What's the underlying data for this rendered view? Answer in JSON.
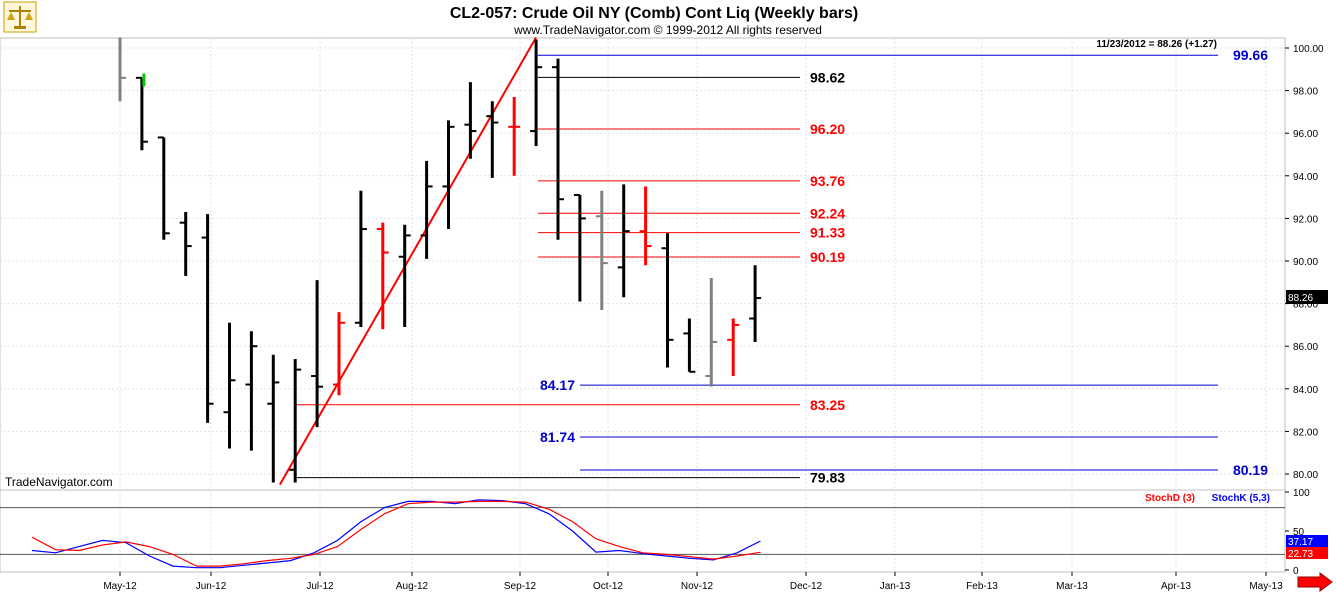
{
  "title": "CL2-057:  Crude Oil NY (Comb) Cont Liq  (Weekly bars)",
  "subtitle": "www.TradeNavigator.com © 1999-2012 All rights reserved",
  "watermark": "TradeNavigator.com",
  "last_quote": "11/23/2012 = 88.26 (+1.27)",
  "price_tag": "88.26",
  "stoch_tags": {
    "k": "37.17",
    "d": "22.73"
  },
  "colors": {
    "bar_up": "#000000",
    "bar_gray": "#808080",
    "bar_red": "#ff0000",
    "bar_green": "#00cc00",
    "level_red": "#ff0000",
    "level_blue": "#0000cc",
    "level_black": "#000000",
    "stoch_k": "#0000ff",
    "stoch_d": "#ff0000"
  },
  "icons": {
    "logo": "gold-scale-icon",
    "scroll": "red-right-arrow-icon"
  },
  "chart_data": [
    {
      "type": "ohlc",
      "title": "CL2-057:  Crude Oil NY (Comb) Cont Liq  (Weekly bars)",
      "x_tick_labels": [
        "May-12",
        "Jun-12",
        "Jul-12",
        "Aug-12",
        "Sep-12",
        "Oct-12",
        "Nov-12",
        "Dec-12",
        "Jan-13",
        "Feb-13",
        "Mar-13",
        "Apr-13",
        "May-13"
      ],
      "y_ticks": [
        "100.00",
        "98.00",
        "96.00",
        "94.00",
        "92.00",
        "90.00",
        "88.00",
        "86.00",
        "84.00",
        "82.00",
        "80.00"
      ],
      "ylim": [
        79.5,
        100.6
      ],
      "bars": [
        {
          "week": 0,
          "open": null,
          "high": 100.5,
          "low": 97.5,
          "close": 98.6,
          "color": "gray"
        },
        {
          "week": 1,
          "open": 98.6,
          "high": 98.6,
          "low": 95.2,
          "close": 95.6,
          "color": "black"
        },
        {
          "week": 2,
          "open": 95.8,
          "high": 95.8,
          "low": 91.0,
          "close": 91.3,
          "color": "black"
        },
        {
          "week": 3,
          "open": 91.8,
          "high": 92.3,
          "low": 89.3,
          "close": 90.7,
          "color": "black"
        },
        {
          "week": 4,
          "open": 91.1,
          "high": 92.2,
          "low": 82.4,
          "close": 83.3,
          "color": "black"
        },
        {
          "week": 5,
          "open": 82.9,
          "high": 87.1,
          "low": 81.2,
          "close": 84.4,
          "color": "black"
        },
        {
          "week": 6,
          "open": 84.2,
          "high": 86.7,
          "low": 81.1,
          "close": 86.0,
          "color": "black"
        },
        {
          "week": 7,
          "open": 83.3,
          "high": 85.6,
          "low": 79.6,
          "close": 84.3,
          "color": "black"
        },
        {
          "week": 8,
          "open": 80.2,
          "high": 85.4,
          "low": 79.6,
          "close": 84.9,
          "color": "black"
        },
        {
          "week": 9,
          "open": 84.6,
          "high": 89.1,
          "low": 82.2,
          "close": 84.1,
          "color": "black"
        },
        {
          "week": 10,
          "open": 84.2,
          "high": 87.6,
          "low": 83.7,
          "close": 87.1,
          "color": "red"
        },
        {
          "week": 11,
          "open": 87.1,
          "high": 93.3,
          "low": 86.9,
          "close": 91.5,
          "color": "black"
        },
        {
          "week": 12,
          "open": 91.5,
          "high": 91.8,
          "low": 86.8,
          "close": 90.4,
          "color": "red"
        },
        {
          "week": 13,
          "open": 90.2,
          "high": 91.7,
          "low": 86.9,
          "close": 91.2,
          "color": "black"
        },
        {
          "week": 14,
          "open": 91.2,
          "high": 94.7,
          "low": 90.1,
          "close": 93.5,
          "color": "black"
        },
        {
          "week": 15,
          "open": 93.5,
          "high": 96.6,
          "low": 91.5,
          "close": 96.3,
          "color": "black"
        },
        {
          "week": 16,
          "open": 96.4,
          "high": 98.4,
          "low": 94.8,
          "close": 96.1,
          "color": "black"
        },
        {
          "week": 17,
          "open": 96.8,
          "high": 97.5,
          "low": 93.9,
          "close": 96.5,
          "color": "black"
        },
        {
          "week": 18,
          "open": 96.3,
          "high": 97.7,
          "low": 94.0,
          "close": 96.3,
          "color": "red"
        },
        {
          "week": 19,
          "open": 96.1,
          "high": 100.4,
          "low": 95.4,
          "close": 99.1,
          "color": "black"
        },
        {
          "week": 20,
          "open": 99.1,
          "high": 99.5,
          "low": 91.0,
          "close": 92.9,
          "color": "black"
        },
        {
          "week": 21,
          "open": 93.1,
          "high": 93.1,
          "low": 88.1,
          "close": 92.0,
          "color": "black"
        },
        {
          "week": 22,
          "open": 92.1,
          "high": 93.3,
          "low": 87.7,
          "close": 89.9,
          "color": "gray"
        },
        {
          "week": 23,
          "open": 89.7,
          "high": 93.6,
          "low": 88.3,
          "close": 91.4,
          "color": "black"
        },
        {
          "week": 24,
          "open": 91.4,
          "high": 93.5,
          "low": 89.8,
          "close": 90.7,
          "color": "red"
        },
        {
          "week": 25,
          "open": 90.6,
          "high": 91.3,
          "low": 85.0,
          "close": 86.3,
          "color": "black"
        },
        {
          "week": 26,
          "open": 86.6,
          "high": 87.3,
          "low": 84.8,
          "close": 84.8,
          "color": "black"
        },
        {
          "week": 27,
          "open": 84.6,
          "high": 89.2,
          "low": 84.1,
          "close": 86.2,
          "color": "gray"
        },
        {
          "week": 28,
          "open": 86.3,
          "high": 87.3,
          "low": 84.6,
          "close": 87.0,
          "color": "red"
        },
        {
          "week": 29,
          "open": 87.3,
          "high": 89.8,
          "low": 86.2,
          "close": 88.26,
          "color": "black"
        }
      ],
      "horizontal_levels": [
        {
          "value": 99.66,
          "label": "99.66",
          "color": "blue"
        },
        {
          "value": 98.62,
          "label": "98.62",
          "color": "black"
        },
        {
          "value": 96.2,
          "label": "96.20",
          "color": "red"
        },
        {
          "value": 93.76,
          "label": "93.76",
          "color": "red"
        },
        {
          "value": 92.24,
          "label": "92.24",
          "color": "red"
        },
        {
          "value": 91.33,
          "label": "91.33",
          "color": "red"
        },
        {
          "value": 90.19,
          "label": "90.19",
          "color": "red"
        },
        {
          "value": 84.17,
          "label": "84.17",
          "color": "blue"
        },
        {
          "value": 83.25,
          "label": "83.25",
          "color": "red"
        },
        {
          "value": 81.74,
          "label": "81.74",
          "color": "blue"
        },
        {
          "value": 80.19,
          "label": "80.19",
          "color": "blue"
        },
        {
          "value": 79.83,
          "label": "79.83",
          "color": "black"
        }
      ],
      "trendline": {
        "from": {
          "week": 7.3,
          "value": 79.5
        },
        "to": {
          "week": 19.0,
          "value": 100.5
        },
        "color": "red"
      }
    },
    {
      "type": "line",
      "series_labels": [
        "StochD (3)",
        "StochK (5,3)"
      ],
      "y_ticks": [
        "100",
        "50",
        "0"
      ],
      "ylim": [
        0,
        100
      ],
      "reference_levels": [
        80,
        20
      ],
      "series": [
        {
          "name": "StochK (5,3)",
          "color": "blue",
          "values": [
            25,
            22,
            30,
            38,
            35,
            18,
            5,
            3,
            3,
            6,
            9,
            12,
            22,
            38,
            62,
            80,
            88,
            88,
            85,
            90,
            89,
            85,
            72,
            50,
            23,
            25,
            21,
            18,
            15,
            13,
            22,
            37.17
          ]
        },
        {
          "name": "StochD (3)",
          "color": "red",
          "values": [
            42,
            26,
            25,
            32,
            36,
            30,
            20,
            5,
            5,
            8,
            12,
            15,
            20,
            30,
            52,
            72,
            85,
            87,
            87,
            88,
            88,
            87,
            78,
            62,
            40,
            30,
            22,
            20,
            17,
            14,
            18,
            22.73
          ]
        }
      ]
    }
  ]
}
